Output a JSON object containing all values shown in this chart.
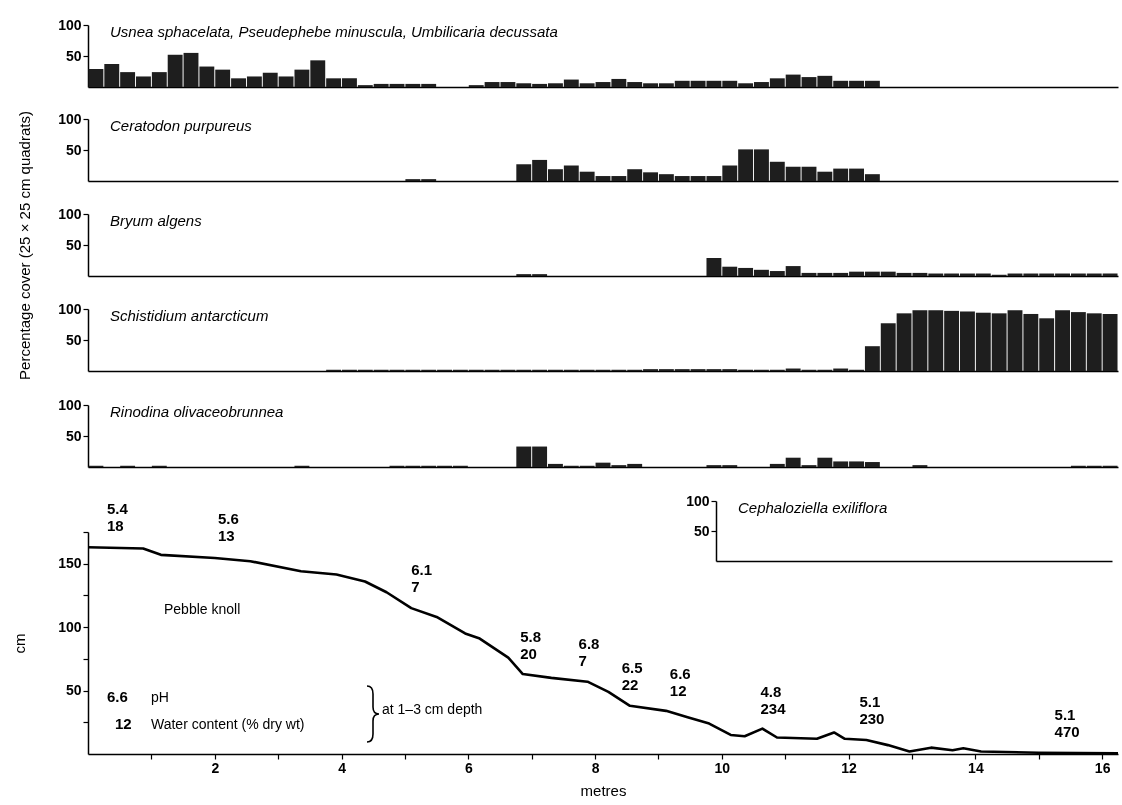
{
  "chart_data": [
    {
      "type": "bar",
      "title": "Usnea sphacelata, Pseudephebe minuscula, Umbilicaria decussata",
      "color": "#1e1e1e",
      "ylim": [
        0,
        100
      ],
      "yticks": [
        50,
        100
      ],
      "tick_labels": "y",
      "categories": [
        null,
        null,
        null,
        null,
        null,
        null,
        null,
        null,
        null,
        null,
        null,
        null,
        null,
        null,
        null,
        null,
        null,
        null,
        null,
        null,
        null,
        null,
        null,
        null,
        null,
        null,
        null,
        null,
        null,
        null,
        null,
        null,
        null,
        null,
        null,
        null,
        null,
        null,
        null,
        null,
        null,
        null,
        null,
        null,
        null,
        null,
        null,
        null,
        null,
        null,
        null,
        null,
        null,
        null,
        null,
        null,
        null,
        null,
        null,
        null,
        null,
        null,
        null,
        null,
        null
      ],
      "values": [
        29,
        37,
        24,
        17,
        24,
        52,
        55,
        33,
        28,
        14,
        17,
        23,
        17,
        28,
        43,
        14,
        14,
        3,
        5,
        5,
        5,
        5,
        0,
        0,
        3,
        8,
        8,
        6,
        5,
        6,
        12,
        6,
        8,
        13,
        8,
        6,
        6,
        10,
        10,
        10,
        10,
        6,
        8,
        14,
        20,
        16,
        18,
        10,
        10,
        10,
        0,
        0,
        0,
        0,
        0,
        0,
        0,
        0,
        0,
        0,
        0,
        0,
        0,
        0,
        0
      ]
    },
    {
      "type": "bar",
      "title": "Ceratodon purpureus",
      "color": "#1e1e1e",
      "ylim": [
        0,
        100
      ],
      "yticks": [
        50,
        100
      ],
      "tick_labels": "y",
      "categories": [
        null,
        null,
        null,
        null,
        null,
        null,
        null,
        null,
        null,
        null,
        null,
        null,
        null,
        null,
        null,
        null,
        null,
        null,
        null,
        null,
        null,
        null,
        null,
        null,
        null,
        null,
        null,
        null,
        null,
        null,
        null,
        null,
        null,
        null,
        null,
        null,
        null,
        null,
        null,
        null,
        null,
        null,
        null,
        null,
        null,
        null,
        null,
        null,
        null,
        null,
        null,
        null,
        null,
        null,
        null,
        null,
        null,
        null,
        null,
        null,
        null,
        null,
        null,
        null,
        null
      ],
      "values": [
        0,
        0,
        0,
        0,
        0,
        0,
        0,
        0,
        0,
        0,
        0,
        0,
        0,
        0,
        0,
        0,
        0,
        0,
        0,
        0,
        3,
        3,
        0,
        0,
        0,
        0,
        0,
        27,
        34,
        19,
        25,
        15,
        8,
        8,
        19,
        14,
        11,
        8,
        8,
        8,
        25,
        51,
        51,
        31,
        23,
        23,
        15,
        20,
        20,
        11,
        0,
        0,
        0,
        0,
        0,
        0,
        0,
        0,
        0,
        0,
        0,
        0,
        0,
        0,
        0
      ]
    },
    {
      "type": "bar",
      "title": "Bryum algens",
      "ylabel": "Percentage cover (25 × 25 cm quadrats)",
      "color": "#1e1e1e",
      "ylim": [
        0,
        100
      ],
      "yticks": [
        50,
        100
      ],
      "tick_labels": "y",
      "categories": [
        null,
        null,
        null,
        null,
        null,
        null,
        null,
        null,
        null,
        null,
        null,
        null,
        null,
        null,
        null,
        null,
        null,
        null,
        null,
        null,
        null,
        null,
        null,
        null,
        null,
        null,
        null,
        null,
        null,
        null,
        null,
        null,
        null,
        null,
        null,
        null,
        null,
        null,
        null,
        null,
        null,
        null,
        null,
        null,
        null,
        null,
        null,
        null,
        null,
        null,
        null,
        null,
        null,
        null,
        null,
        null,
        null,
        null,
        null,
        null,
        null,
        null,
        null,
        null,
        null
      ],
      "values": [
        0,
        0,
        0,
        0,
        0,
        0,
        0,
        0,
        0,
        0,
        0,
        0,
        0,
        0,
        0,
        0,
        0,
        0,
        0,
        0,
        0,
        0,
        0,
        0,
        0,
        0,
        0,
        3,
        3,
        0,
        0,
        0,
        0,
        0,
        0,
        0,
        0,
        0,
        0,
        29,
        15,
        13,
        10,
        8,
        16,
        5,
        5,
        5,
        7,
        7,
        7,
        5,
        5,
        4,
        4,
        4,
        4,
        2,
        4,
        4,
        4,
        4,
        4,
        4,
        4
      ]
    },
    {
      "type": "bar",
      "title": "Schistidium antarcticum",
      "color": "#1e1e1e",
      "ylim": [
        0,
        100
      ],
      "yticks": [
        50,
        100
      ],
      "tick_labels": "y",
      "categories": [
        null,
        null,
        null,
        null,
        null,
        null,
        null,
        null,
        null,
        null,
        null,
        null,
        null,
        null,
        null,
        null,
        null,
        null,
        null,
        null,
        null,
        null,
        null,
        null,
        null,
        null,
        null,
        null,
        null,
        null,
        null,
        null,
        null,
        null,
        null,
        null,
        null,
        null,
        null,
        null,
        null,
        null,
        null,
        null,
        null,
        null,
        null,
        null,
        null,
        null,
        null,
        null,
        null,
        null,
        null,
        null,
        null,
        null,
        null,
        null,
        null,
        null,
        null,
        null,
        null
      ],
      "values": [
        0,
        0,
        0,
        0,
        0,
        0,
        0,
        0,
        0,
        0,
        0,
        0,
        0,
        0,
        0,
        2,
        2,
        2,
        2,
        2,
        2,
        2,
        2,
        2,
        2,
        2,
        2,
        2,
        2,
        2,
        2,
        2,
        2,
        2,
        2,
        3,
        3,
        3,
        3,
        3,
        3,
        2,
        2,
        2,
        4,
        2,
        2,
        4,
        2,
        40,
        77,
        93,
        98,
        98,
        97,
        96,
        94,
        93,
        98,
        92,
        85,
        98,
        95,
        93,
        92
      ]
    },
    {
      "type": "bar",
      "title": "Rinodina olivaceobrunnea",
      "color": "#1e1e1e",
      "ylim": [
        0,
        100
      ],
      "yticks": [
        50,
        100
      ],
      "tick_labels": "y",
      "categories": [
        null,
        null,
        null,
        null,
        null,
        null,
        null,
        null,
        null,
        null,
        null,
        null,
        null,
        null,
        null,
        null,
        null,
        null,
        null,
        null,
        null,
        null,
        null,
        null,
        null,
        null,
        null,
        null,
        null,
        null,
        null,
        null,
        null,
        null,
        null,
        null,
        null,
        null,
        null,
        null,
        null,
        null,
        null,
        null,
        null,
        null,
        null,
        null,
        null,
        null,
        null,
        null,
        null,
        null,
        null,
        null,
        null,
        null,
        null,
        null,
        null,
        null,
        null,
        null,
        null
      ],
      "values": [
        2,
        0,
        2,
        0,
        2,
        0,
        0,
        0,
        0,
        0,
        0,
        0,
        0,
        2,
        0,
        0,
        0,
        0,
        0,
        2,
        2,
        2,
        2,
        2,
        0,
        0,
        0,
        33,
        33,
        5,
        2,
        2,
        7,
        3,
        5,
        0,
        0,
        0,
        0,
        3,
        3,
        0,
        0,
        5,
        15,
        3,
        15,
        9,
        9,
        8,
        0,
        0,
        3,
        0,
        0,
        0,
        0,
        0,
        0,
        0,
        0,
        0,
        2,
        2,
        2
      ]
    },
    {
      "type": "bar",
      "title": "Cephaloziella exiliflora",
      "color": "#1e1e1e",
      "ylim": [
        0,
        100
      ],
      "yticks": [
        50,
        100
      ],
      "tick_labels": "y",
      "categories": [
        null,
        null,
        null,
        null,
        null,
        null,
        null,
        null,
        null,
        null,
        null,
        null,
        null,
        null,
        null,
        null,
        null,
        null,
        null,
        null,
        null,
        null,
        null,
        null,
        null
      ],
      "values": [
        0,
        0,
        0,
        0,
        0,
        0,
        0,
        0,
        0,
        0,
        0,
        0,
        0,
        0,
        0,
        0,
        0,
        0,
        0,
        0,
        0,
        0,
        0,
        0,
        0
      ]
    },
    {
      "type": "line",
      "xlabel": "metres",
      "ylabel": "cm",
      "color": "#000000",
      "xlim": [
        0,
        16.25
      ],
      "ylim": [
        0,
        175
      ],
      "xticks": [
        {
          "value": 1,
          "label": null
        },
        2,
        {
          "value": 3,
          "label": null
        },
        4,
        {
          "value": 5,
          "label": null
        },
        6,
        {
          "value": 7,
          "label": null
        },
        8,
        {
          "value": 9,
          "label": null
        },
        10,
        {
          "value": 11,
          "label": null
        },
        12,
        {
          "value": 13,
          "label": null
        },
        14,
        {
          "value": 15,
          "label": null
        },
        16
      ],
      "yticks": [
        {
          "value": 25,
          "label": null
        },
        50,
        {
          "value": 75,
          "label": null
        },
        100,
        {
          "value": 125,
          "label": null
        },
        150,
        {
          "value": 175,
          "label": null
        }
      ],
      "x": [
        0,
        0.87,
        1.15,
        2,
        2.56,
        3.36,
        3.92,
        4.37,
        4.71,
        5.1,
        5.5,
        5.95,
        6.18,
        6.63,
        6.86,
        7.31,
        7.88,
        8.21,
        8.55,
        9.12,
        9.46,
        9.8,
        10.14,
        10.36,
        10.64,
        10.87,
        11.5,
        11.77,
        11.94,
        12.28,
        12.62,
        12.96,
        13.3,
        13.64,
        13.81,
        14.09,
        15,
        16.25
      ],
      "values": [
        163,
        162,
        157,
        154.5,
        152,
        144,
        141.5,
        136,
        127.5,
        115,
        108,
        95,
        91,
        76,
        63,
        60,
        57,
        49,
        38,
        34,
        29,
        24,
        15,
        14,
        20,
        13,
        12,
        17,
        12,
        11,
        7,
        2,
        5,
        3,
        4.5,
        2,
        1,
        0.5
      ],
      "annotations": [
        {
          "text": "5.4\n18",
          "x": 0.3,
          "y": 163
        },
        {
          "text": "5.6\n13",
          "x": 2.05,
          "y": 155
        },
        {
          "text": "6.1\n7",
          "x": 5.1,
          "y": 115
        },
        {
          "text": "5.8\n20",
          "x": 6.82,
          "y": 62
        },
        {
          "text": "6.8\n7",
          "x": 7.74,
          "y": 57
        },
        {
          "text": "6.5\n22",
          "x": 8.42,
          "y": 38
        },
        {
          "text": "6.6\n12",
          "x": 9.18,
          "y": 33
        },
        {
          "text": "4.8\n234",
          "x": 10.61,
          "y": 19
        },
        {
          "text": "5.1\n230",
          "x": 12.17,
          "y": 11
        },
        {
          "text": "5.1\n470",
          "x": 15.25,
          "y": 1
        },
        "Pebble knoll",
        "6.6",
        "pH",
        "12",
        "Water content (% dry wt)",
        "at 1–3 cm depth"
      ]
    }
  ]
}
